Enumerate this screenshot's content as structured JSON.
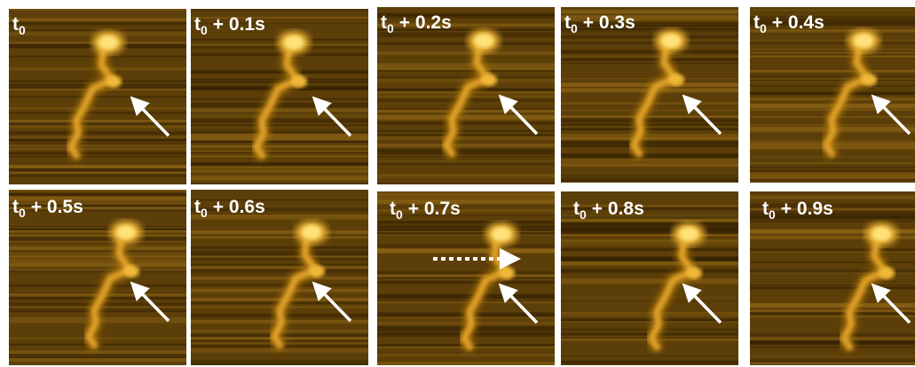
{
  "frames": [
    {
      "var": "t",
      "sub": "0"
    },
    {
      "var": "t",
      "sub": "0",
      "offset": "+ 0.1s"
    },
    {
      "var": "t",
      "sub": "0",
      "offset": "+ 0.2s"
    },
    {
      "var": "t",
      "sub": "0",
      "offset": "+ 0.3s"
    },
    {
      "var": "t",
      "sub": "0",
      "offset": "+ 0.4s"
    },
    {
      "var": "t",
      "sub": "0",
      "offset": "+ 0.5s"
    },
    {
      "var": "t",
      "sub": "0",
      "offset": "+ 0.6s"
    },
    {
      "var": "t",
      "sub": "0",
      "offset": "+ 0.7s"
    },
    {
      "var": "t",
      "sub": "0",
      "offset": "+ 0.8s"
    },
    {
      "var": "t",
      "sub": "0",
      "offset": "+ 0.9s"
    }
  ]
}
